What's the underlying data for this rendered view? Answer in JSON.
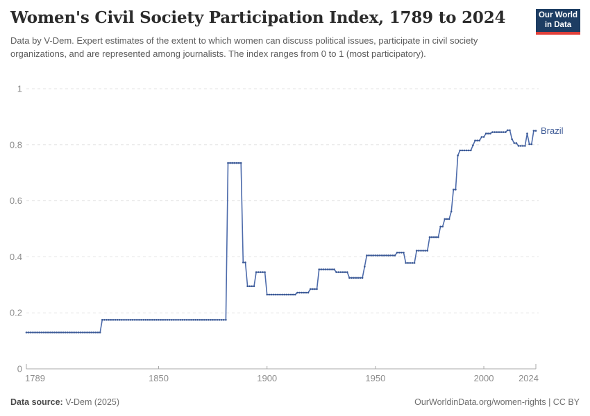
{
  "header": {
    "title": "Women's Civil Society Participation Index, 1789 to 2024",
    "subtitle": "Data by V-Dem. Expert estimates of the extent to which women can discuss political issues, participate in civil society organizations, and are represented among journalists. The index ranges from 0 to 1 (most participatory).",
    "logo": {
      "line1": "Our World",
      "line2": "in Data"
    }
  },
  "footer": {
    "data_source_label": "Data source:",
    "data_source_value": " V-Dem (2025)",
    "credit": "OurWorldinData.org/women-rights | CC BY"
  },
  "colors": {
    "line": "#4d6bab",
    "marker": "#3a5894",
    "entity_label": "#3d5a96",
    "grid": "#e3e3e3",
    "axis": "#a8a8a8",
    "tick_text": "#8c8c8c",
    "logo_bg": "#1d3d63",
    "logo_stripe": "#e0403a"
  },
  "chart_data": {
    "type": "line",
    "title": "Women's Civil Society Participation Index, 1789 to 2024",
    "xlabel": "",
    "ylabel": "",
    "xlim": [
      1789,
      2024
    ],
    "ylim": [
      0,
      1
    ],
    "x_ticks": [
      1789,
      1850,
      1900,
      1950,
      2000,
      2024
    ],
    "y_ticks": [
      0,
      0.2,
      0.4,
      0.6,
      0.8,
      1
    ],
    "grid": "horizontal-dashed",
    "legend_position": "end-of-line-label",
    "series": [
      {
        "name": "Brazil",
        "note": "step_segments are [start_year, end_year, index_value]; one data point per year",
        "step_segments": [
          [
            1789,
            1823,
            0.13
          ],
          [
            1824,
            1881,
            0.175
          ],
          [
            1882,
            1888,
            0.735
          ],
          [
            1889,
            1890,
            0.38
          ],
          [
            1891,
            1894,
            0.295
          ],
          [
            1895,
            1899,
            0.345
          ],
          [
            1900,
            1913,
            0.265
          ],
          [
            1914,
            1919,
            0.272
          ],
          [
            1920,
            1923,
            0.285
          ],
          [
            1924,
            1931,
            0.355
          ],
          [
            1932,
            1937,
            0.345
          ],
          [
            1938,
            1944,
            0.325
          ],
          [
            1945,
            1945,
            0.365
          ],
          [
            1946,
            1959,
            0.405
          ],
          [
            1960,
            1963,
            0.415
          ],
          [
            1964,
            1968,
            0.378
          ],
          [
            1969,
            1974,
            0.422
          ],
          [
            1975,
            1979,
            0.47
          ],
          [
            1980,
            1981,
            0.508
          ],
          [
            1982,
            1984,
            0.535
          ],
          [
            1985,
            1985,
            0.562
          ],
          [
            1986,
            1987,
            0.64
          ],
          [
            1988,
            1988,
            0.762
          ],
          [
            1989,
            1994,
            0.78
          ],
          [
            1995,
            1995,
            0.798
          ],
          [
            1996,
            1998,
            0.815
          ],
          [
            1999,
            2000,
            0.828
          ],
          [
            2001,
            2003,
            0.84
          ],
          [
            2004,
            2010,
            0.845
          ],
          [
            2011,
            2012,
            0.852
          ],
          [
            2013,
            2013,
            0.82
          ],
          [
            2014,
            2015,
            0.806
          ],
          [
            2016,
            2019,
            0.796
          ],
          [
            2020,
            2020,
            0.84
          ],
          [
            2021,
            2022,
            0.802
          ],
          [
            2023,
            2024,
            0.85
          ]
        ]
      }
    ]
  }
}
